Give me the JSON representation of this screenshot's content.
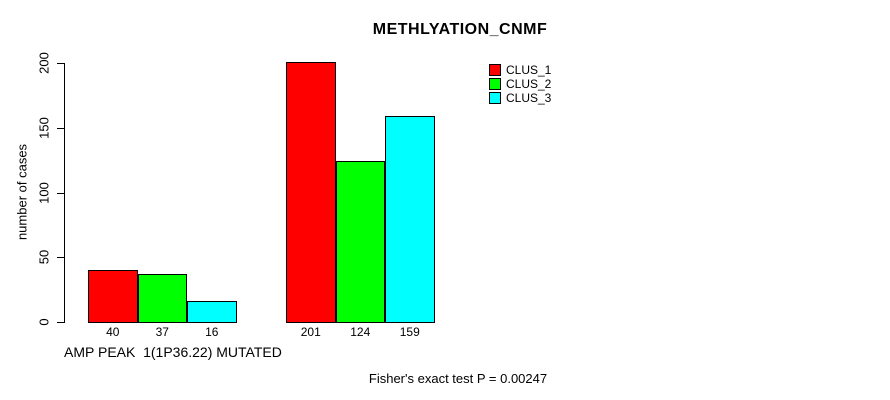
{
  "title": "METHLYATION_CNMF",
  "footer": "Fisher's exact test P = 0.00247",
  "colors": {
    "clus_1": "#ff0000",
    "clus_2": "#00ff00",
    "clus_3": "#00ffff",
    "axis": "#000000",
    "background": "#ffffff"
  },
  "chart_data": {
    "type": "bar",
    "title": "METHLYATION_CNMF",
    "xlabel": "",
    "ylabel": "number of cases",
    "ylim": [
      0,
      200
    ],
    "yticks": [
      0,
      50,
      100,
      150,
      200
    ],
    "grid": false,
    "legend_position": "top-right",
    "series_names": [
      "CLUS_1",
      "CLUS_2",
      "CLUS_3"
    ],
    "series_colors": [
      "#ff0000",
      "#00ff00",
      "#00ffff"
    ],
    "groups": [
      {
        "label": "AMP PEAK  1(1P36.22) MUTATED",
        "values": [
          40,
          37,
          16
        ]
      },
      {
        "label": "",
        "values": [
          201,
          124,
          159
        ]
      }
    ],
    "bar_value_labels": [
      [
        "40",
        "37",
        "16"
      ],
      [
        "201",
        "124",
        "159"
      ]
    ],
    "annotation": "Fisher's exact test P = 0.00247"
  }
}
